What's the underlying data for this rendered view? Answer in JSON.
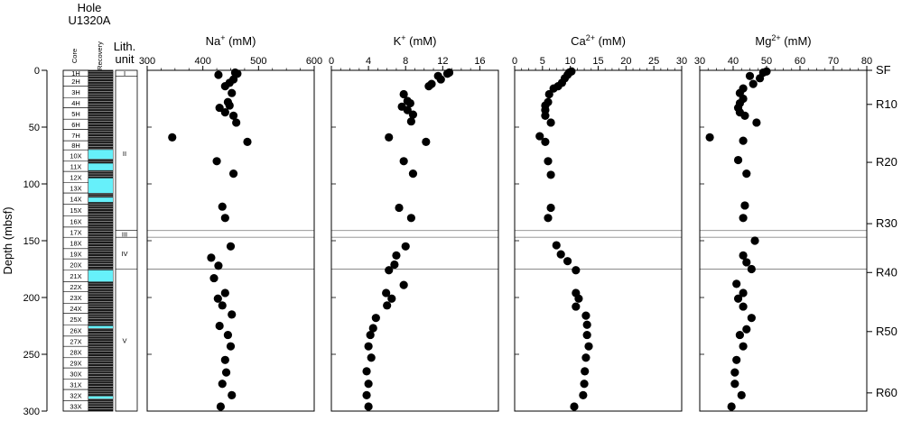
{
  "hole": {
    "line1": "Hole",
    "line2": "U1320A"
  },
  "column_headers": {
    "core": "Core",
    "recovery": "Recovery",
    "lith_line1": "Lith.",
    "lith_line2": "unit"
  },
  "y_axis": {
    "label": "Depth (mbsf)",
    "range": [
      0,
      300
    ],
    "ticks": [
      0,
      50,
      100,
      150,
      200,
      250,
      300
    ]
  },
  "cores": [
    {
      "label": "1H",
      "top": 0,
      "bottom": 5
    },
    {
      "label": "2H",
      "top": 5,
      "bottom": 14
    },
    {
      "label": "3H",
      "top": 14,
      "bottom": 24
    },
    {
      "label": "4H",
      "top": 24,
      "bottom": 33
    },
    {
      "label": "5H",
      "top": 33,
      "bottom": 43
    },
    {
      "label": "6H",
      "top": 43,
      "bottom": 52
    },
    {
      "label": "7H",
      "top": 52,
      "bottom": 62
    },
    {
      "label": "8H",
      "top": 62,
      "bottom": 70
    },
    {
      "label": "10X",
      "top": 70,
      "bottom": 80
    },
    {
      "label": "11X",
      "top": 80,
      "bottom": 89
    },
    {
      "label": "12X",
      "top": 89,
      "bottom": 99
    },
    {
      "label": "13X",
      "top": 99,
      "bottom": 108
    },
    {
      "label": "14X",
      "top": 108,
      "bottom": 118
    },
    {
      "label": "15X",
      "top": 118,
      "bottom": 128
    },
    {
      "label": "16X",
      "top": 128,
      "bottom": 138
    },
    {
      "label": "17X",
      "top": 138,
      "bottom": 147
    },
    {
      "label": "18X",
      "top": 147,
      "bottom": 157
    },
    {
      "label": "19X",
      "top": 157,
      "bottom": 166
    },
    {
      "label": "20X",
      "top": 166,
      "bottom": 176
    },
    {
      "label": "21X",
      "top": 176,
      "bottom": 186
    },
    {
      "label": "22X",
      "top": 186,
      "bottom": 195
    },
    {
      "label": "23X",
      "top": 195,
      "bottom": 205
    },
    {
      "label": "24X",
      "top": 205,
      "bottom": 214
    },
    {
      "label": "25X",
      "top": 214,
      "bottom": 224
    },
    {
      "label": "26X",
      "top": 224,
      "bottom": 234
    },
    {
      "label": "27X",
      "top": 234,
      "bottom": 243
    },
    {
      "label": "28X",
      "top": 243,
      "bottom": 253
    },
    {
      "label": "29X",
      "top": 253,
      "bottom": 262
    },
    {
      "label": "30X",
      "top": 262,
      "bottom": 272
    },
    {
      "label": "31X",
      "top": 272,
      "bottom": 281
    },
    {
      "label": "32X",
      "top": 281,
      "bottom": 291
    },
    {
      "label": "33X",
      "top": 291,
      "bottom": 300
    }
  ],
  "recovery_no_recovery_intervals": [
    [
      70,
      78
    ],
    [
      82,
      88
    ],
    [
      95,
      108
    ],
    [
      112,
      116
    ],
    [
      176,
      186
    ],
    [
      225,
      227
    ],
    [
      287,
      289
    ]
  ],
  "lith_units": [
    {
      "label": "I",
      "top": 0,
      "bottom": 5
    },
    {
      "label": "II",
      "top": 5,
      "bottom": 141
    },
    {
      "label": "III",
      "top": 141,
      "bottom": 147
    },
    {
      "label": "IV",
      "top": 147,
      "bottom": 175
    },
    {
      "label": "V",
      "top": 175,
      "bottom": 300
    }
  ],
  "unit_boundaries": [
    141,
    147,
    175
  ],
  "reflectors": [
    {
      "label": "SF",
      "depth": 0
    },
    {
      "label": "R10",
      "depth": 30
    },
    {
      "label": "R20",
      "depth": 81
    },
    {
      "label": "R30",
      "depth": 135
    },
    {
      "label": "R40",
      "depth": 178
    },
    {
      "label": "R50",
      "depth": 230
    },
    {
      "label": "R60",
      "depth": 284
    }
  ],
  "chart_data": [
    {
      "type": "scatter",
      "title": "Na+ (mM)",
      "title_base": "Na",
      "title_sup": "+",
      "title_unit": " (mM)",
      "xlim": [
        300,
        600
      ],
      "xticks": [
        300,
        400,
        500,
        600
      ],
      "xlabel": "",
      "ylabel": "Depth (mbsf)",
      "ylim": [
        0,
        300
      ],
      "points": [
        {
          "x": 458,
          "y": 2
        },
        {
          "x": 462,
          "y": 3
        },
        {
          "x": 428,
          "y": 4
        },
        {
          "x": 455,
          "y": 8
        },
        {
          "x": 448,
          "y": 11
        },
        {
          "x": 440,
          "y": 14
        },
        {
          "x": 452,
          "y": 20
        },
        {
          "x": 445,
          "y": 28
        },
        {
          "x": 448,
          "y": 31
        },
        {
          "x": 430,
          "y": 33
        },
        {
          "x": 440,
          "y": 37
        },
        {
          "x": 455,
          "y": 40
        },
        {
          "x": 460,
          "y": 46
        },
        {
          "x": 345,
          "y": 59
        },
        {
          "x": 480,
          "y": 63
        },
        {
          "x": 425,
          "y": 80
        },
        {
          "x": 455,
          "y": 91
        },
        {
          "x": 435,
          "y": 120
        },
        {
          "x": 440,
          "y": 130
        },
        {
          "x": 450,
          "y": 155
        },
        {
          "x": 415,
          "y": 165
        },
        {
          "x": 428,
          "y": 172
        },
        {
          "x": 420,
          "y": 183
        },
        {
          "x": 440,
          "y": 196
        },
        {
          "x": 427,
          "y": 201
        },
        {
          "x": 435,
          "y": 207
        },
        {
          "x": 452,
          "y": 215
        },
        {
          "x": 430,
          "y": 225
        },
        {
          "x": 445,
          "y": 233
        },
        {
          "x": 450,
          "y": 243
        },
        {
          "x": 440,
          "y": 255
        },
        {
          "x": 442,
          "y": 266
        },
        {
          "x": 435,
          "y": 276
        },
        {
          "x": 452,
          "y": 286
        },
        {
          "x": 432,
          "y": 296
        }
      ]
    },
    {
      "type": "scatter",
      "title": "K+ (mM)",
      "title_base": "K",
      "title_sup": "+",
      "title_unit": " (mM)",
      "xlim": [
        0,
        18
      ],
      "xticks": [
        0,
        4,
        8,
        12,
        16
      ],
      "xlabel": "",
      "ylabel": "Depth (mbsf)",
      "ylim": [
        0,
        300
      ],
      "points": [
        {
          "x": 12.7,
          "y": 2
        },
        {
          "x": 12.5,
          "y": 3
        },
        {
          "x": 11.5,
          "y": 5
        },
        {
          "x": 11.8,
          "y": 8
        },
        {
          "x": 10.8,
          "y": 12
        },
        {
          "x": 10.5,
          "y": 14
        },
        {
          "x": 7.8,
          "y": 21
        },
        {
          "x": 8.2,
          "y": 27
        },
        {
          "x": 8.5,
          "y": 29
        },
        {
          "x": 7.6,
          "y": 32
        },
        {
          "x": 8.2,
          "y": 35
        },
        {
          "x": 8.8,
          "y": 39
        },
        {
          "x": 8.6,
          "y": 45
        },
        {
          "x": 6.2,
          "y": 59
        },
        {
          "x": 10.2,
          "y": 63
        },
        {
          "x": 7.8,
          "y": 80
        },
        {
          "x": 8.8,
          "y": 91
        },
        {
          "x": 7.3,
          "y": 121
        },
        {
          "x": 8.6,
          "y": 130
        },
        {
          "x": 8.0,
          "y": 155
        },
        {
          "x": 7.0,
          "y": 163
        },
        {
          "x": 6.8,
          "y": 171
        },
        {
          "x": 6.2,
          "y": 176
        },
        {
          "x": 7.8,
          "y": 189
        },
        {
          "x": 5.9,
          "y": 196
        },
        {
          "x": 6.5,
          "y": 201
        },
        {
          "x": 6.0,
          "y": 207
        },
        {
          "x": 4.8,
          "y": 218
        },
        {
          "x": 4.5,
          "y": 227
        },
        {
          "x": 4.2,
          "y": 233
        },
        {
          "x": 4.0,
          "y": 243
        },
        {
          "x": 4.3,
          "y": 253
        },
        {
          "x": 3.8,
          "y": 265
        },
        {
          "x": 4.0,
          "y": 276
        },
        {
          "x": 3.8,
          "y": 286
        },
        {
          "x": 4.0,
          "y": 296
        }
      ]
    },
    {
      "type": "scatter",
      "title": "Ca2+ (mM)",
      "title_base": "Ca",
      "title_sup": "2+",
      "title_unit": " (mM)",
      "xlim": [
        0,
        30
      ],
      "xticks": [
        0,
        5,
        10,
        15,
        20,
        25,
        30
      ],
      "xlabel": "",
      "ylabel": "Depth (mbsf)",
      "ylim": [
        0,
        300
      ],
      "points": [
        {
          "x": 10.2,
          "y": 1
        },
        {
          "x": 9.8,
          "y": 2
        },
        {
          "x": 9.5,
          "y": 4
        },
        {
          "x": 9.0,
          "y": 7
        },
        {
          "x": 8.5,
          "y": 11
        },
        {
          "x": 7.8,
          "y": 14
        },
        {
          "x": 7.0,
          "y": 16
        },
        {
          "x": 6.2,
          "y": 21
        },
        {
          "x": 6.0,
          "y": 28
        },
        {
          "x": 5.5,
          "y": 31
        },
        {
          "x": 5.5,
          "y": 35
        },
        {
          "x": 5.5,
          "y": 40
        },
        {
          "x": 6.5,
          "y": 46
        },
        {
          "x": 4.5,
          "y": 58
        },
        {
          "x": 5.5,
          "y": 63
        },
        {
          "x": 6.0,
          "y": 80
        },
        {
          "x": 6.5,
          "y": 92
        },
        {
          "x": 6.5,
          "y": 121
        },
        {
          "x": 6.0,
          "y": 130
        },
        {
          "x": 7.5,
          "y": 154
        },
        {
          "x": 8.3,
          "y": 162
        },
        {
          "x": 9.5,
          "y": 168
        },
        {
          "x": 11.0,
          "y": 176
        },
        {
          "x": 11.0,
          "y": 196
        },
        {
          "x": 11.5,
          "y": 201
        },
        {
          "x": 11.0,
          "y": 208
        },
        {
          "x": 12.8,
          "y": 216
        },
        {
          "x": 13.0,
          "y": 224
        },
        {
          "x": 13.0,
          "y": 233
        },
        {
          "x": 13.3,
          "y": 243
        },
        {
          "x": 12.8,
          "y": 253
        },
        {
          "x": 12.6,
          "y": 265
        },
        {
          "x": 12.5,
          "y": 276
        },
        {
          "x": 12.3,
          "y": 286
        },
        {
          "x": 10.7,
          "y": 296
        }
      ]
    },
    {
      "type": "scatter",
      "title": "Mg2+ (mM)",
      "title_base": "Mg",
      "title_sup": "2+",
      "title_unit": " (mM)",
      "xlim": [
        30,
        80
      ],
      "xticks": [
        30,
        40,
        50,
        60,
        70,
        80
      ],
      "xlabel": "",
      "ylabel": "Depth (mbsf)",
      "ylim": [
        0,
        300
      ],
      "points": [
        {
          "x": 50,
          "y": 1
        },
        {
          "x": 49,
          "y": 2
        },
        {
          "x": 45,
          "y": 5
        },
        {
          "x": 48,
          "y": 7
        },
        {
          "x": 46,
          "y": 12
        },
        {
          "x": 43,
          "y": 16
        },
        {
          "x": 42,
          "y": 20
        },
        {
          "x": 43,
          "y": 25
        },
        {
          "x": 42,
          "y": 29
        },
        {
          "x": 41.5,
          "y": 33
        },
        {
          "x": 42,
          "y": 37
        },
        {
          "x": 43.5,
          "y": 40
        },
        {
          "x": 47,
          "y": 46
        },
        {
          "x": 33,
          "y": 59
        },
        {
          "x": 43,
          "y": 62
        },
        {
          "x": 41.5,
          "y": 79
        },
        {
          "x": 44,
          "y": 91
        },
        {
          "x": 43.5,
          "y": 119
        },
        {
          "x": 43,
          "y": 130
        },
        {
          "x": 46.5,
          "y": 150
        },
        {
          "x": 43,
          "y": 163
        },
        {
          "x": 44,
          "y": 169
        },
        {
          "x": 45.5,
          "y": 175
        },
        {
          "x": 41,
          "y": 188
        },
        {
          "x": 43,
          "y": 196
        },
        {
          "x": 41.5,
          "y": 201
        },
        {
          "x": 43,
          "y": 208
        },
        {
          "x": 45.5,
          "y": 218
        },
        {
          "x": 44,
          "y": 228
        },
        {
          "x": 42,
          "y": 233
        },
        {
          "x": 43,
          "y": 243
        },
        {
          "x": 41,
          "y": 255
        },
        {
          "x": 40.5,
          "y": 266
        },
        {
          "x": 40.5,
          "y": 276
        },
        {
          "x": 42.5,
          "y": 286
        },
        {
          "x": 39.5,
          "y": 296
        }
      ]
    }
  ]
}
